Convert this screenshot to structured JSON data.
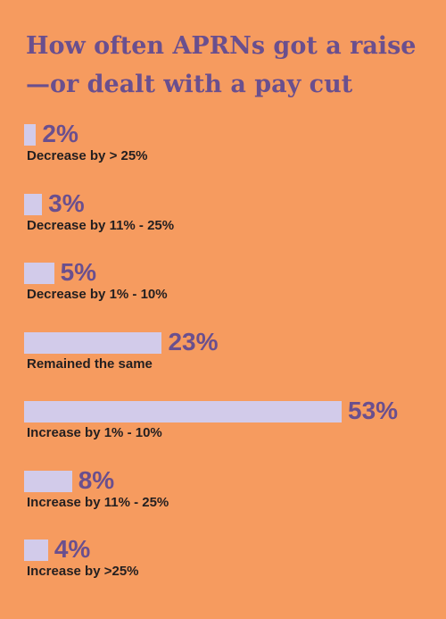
{
  "chart_data": {
    "type": "bar",
    "orientation": "horizontal",
    "title": "How often APRNs got a raise—or dealt with a pay cut",
    "categories": [
      "Decrease by > 25%",
      "Decrease by 11% - 25%",
      "Decrease by 1% - 10%",
      "Remained the same",
      "Increase by 1% - 10%",
      "Increase by 11% - 25%",
      "Increase by >25%"
    ],
    "values": [
      2,
      3,
      5,
      23,
      53,
      8,
      4
    ],
    "value_labels": [
      "2%",
      "3%",
      "5%",
      "23%",
      "53%",
      "8%",
      "4%"
    ],
    "xlim": [
      0,
      53
    ],
    "grid": false,
    "colors": {
      "background": "#F69B5F",
      "bar": "#D2CBEA",
      "title": "#6A4F8E",
      "value": "#6A4F8E",
      "label": "#231F20"
    }
  }
}
